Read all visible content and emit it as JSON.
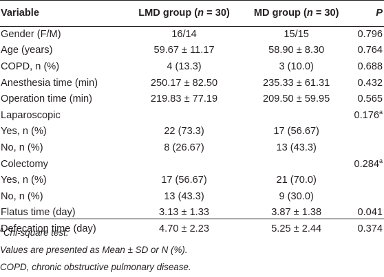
{
  "header": {
    "variable": "Variable",
    "lmd_group": "LMD group (",
    "lmd_n": "n",
    "lmd_rest": " = 30)",
    "md_group": "MD group (",
    "md_n": "n",
    "md_rest": " = 30)",
    "p": "P"
  },
  "rows": [
    {
      "variable": "Gender (F/M)",
      "lmd": "16/14",
      "md": "15/15",
      "p": "0.796",
      "p_sup": ""
    },
    {
      "variable": "Age (years)",
      "lmd": "59.67 ± 11.17",
      "md": "58.90 ± 8.30",
      "p": "0.764",
      "p_sup": ""
    },
    {
      "variable": "COPD, n (%)",
      "lmd": "4 (13.3)",
      "md": "3 (10.0)",
      "p": "0.688",
      "p_sup": ""
    },
    {
      "variable": "Anesthesia time (min)",
      "lmd": "250.17 ± 82.50",
      "md": "235.33 ± 61.31",
      "p": "0.432",
      "p_sup": ""
    },
    {
      "variable": "Operation time (min)",
      "lmd": "219.83 ± 77.19",
      "md": "209.50 ± 59.95",
      "p": "0.565",
      "p_sup": ""
    },
    {
      "variable": "Laparoscopic",
      "lmd": "",
      "md": "",
      "p": "0.176",
      "p_sup": "a"
    },
    {
      "variable": "Yes, n (%)",
      "lmd": "22 (73.3)",
      "md": "17 (56.67)",
      "p": "",
      "p_sup": ""
    },
    {
      "variable": "No, n (%)",
      "lmd": "8 (26.67)",
      "md": "13 (43.3)",
      "p": "",
      "p_sup": ""
    },
    {
      "variable": "Colectomy",
      "lmd": "",
      "md": "",
      "p": "0.284",
      "p_sup": "a"
    },
    {
      "variable": "Yes, n (%)",
      "lmd": "17 (56.67)",
      "md": "21 (70.0)",
      "p": "",
      "p_sup": ""
    },
    {
      "variable": "No, n (%)",
      "lmd": "13 (43.3)",
      "md": "9 (30.0)",
      "p": "",
      "p_sup": ""
    },
    {
      "variable": "Flatus time (day)",
      "lmd": "3.13 ± 1.33",
      "md": "3.87 ± 1.38",
      "p": "0.041",
      "p_sup": ""
    },
    {
      "variable": "Defecation time (day)",
      "lmd": "4.70 ± 2.23",
      "md": "5.25 ± 2.44",
      "p": "0.374",
      "p_sup": ""
    }
  ],
  "footnotes": {
    "chi_sup": "a",
    "chi": "Chi-square test.",
    "values": "Values are presented as Mean ± SD or N (%).",
    "copd": "COPD, chronic obstructive pulmonary disease."
  }
}
